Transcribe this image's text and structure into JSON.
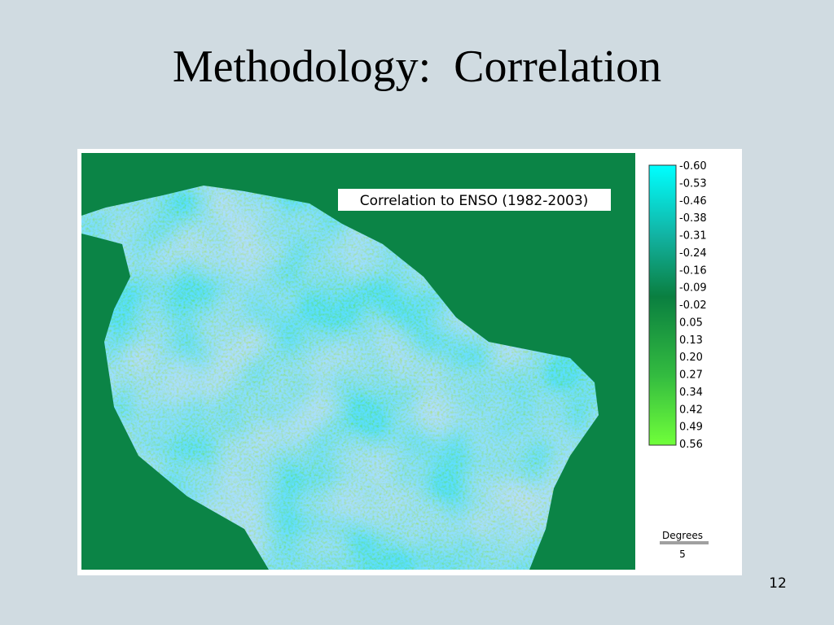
{
  "slide": {
    "title": "Methodology:  Correlation",
    "page_number": "12"
  },
  "map": {
    "caption": "Correlation to ENSO (1982-2003)",
    "legend_labels": [
      "-0.60",
      "-0.53",
      "-0.46",
      "-0.38",
      "-0.31",
      "-0.24",
      "-0.16",
      "-0.09",
      "-0.02",
      "0.05",
      "0.13",
      "0.20",
      "0.27",
      "0.34",
      "0.42",
      "0.49",
      "0.56"
    ],
    "scale_title": "Degrees",
    "scale_value": "5"
  }
}
